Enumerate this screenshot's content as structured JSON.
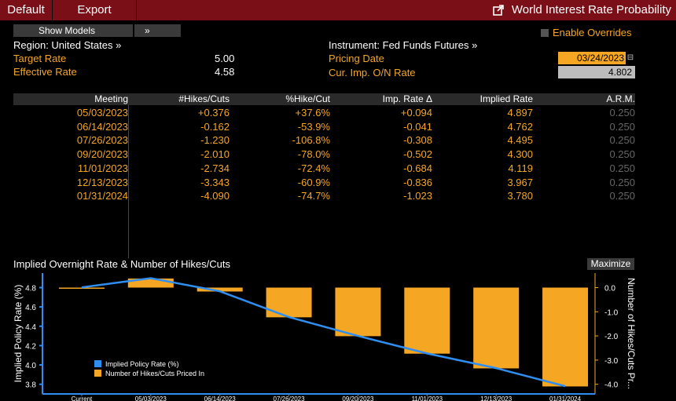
{
  "topbar": {
    "default_label": "Default",
    "export_label": "Export",
    "title": "World Interest Rate Probability"
  },
  "controls": {
    "show_models_label": "Show Models",
    "show_models_arrows": "»",
    "enable_overrides_label": "Enable Overrides"
  },
  "info": {
    "region_label": "Region: United States »",
    "target_rate_label": "Target Rate",
    "target_rate_value": "5.00",
    "effective_rate_label": "Effective Rate",
    "effective_rate_value": "4.58",
    "instrument_label": "Instrument: Fed Funds Futures »",
    "pricing_date_label": "Pricing Date",
    "pricing_date_value": "03/24/2023",
    "cur_rate_label": "Cur. Imp. O/N Rate",
    "cur_rate_value": "4.802"
  },
  "table": {
    "headers": [
      "Meeting",
      "#Hikes/Cuts",
      "%Hike/Cut",
      "Imp. Rate Δ",
      "Implied Rate",
      "A.R.M."
    ],
    "rows": [
      [
        "05/03/2023",
        "+0.376",
        "+37.6%",
        "+0.094",
        "4.897",
        "0.250"
      ],
      [
        "06/14/2023",
        "-0.162",
        "-53.9%",
        "-0.041",
        "4.762",
        "0.250"
      ],
      [
        "07/26/2023",
        "-1.230",
        "-106.8%",
        "-0.308",
        "4.495",
        "0.250"
      ],
      [
        "09/20/2023",
        "-2.010",
        "-78.0%",
        "-0.502",
        "4.300",
        "0.250"
      ],
      [
        "11/01/2023",
        "-2.734",
        "-72.4%",
        "-0.684",
        "4.119",
        "0.250"
      ],
      [
        "12/13/2023",
        "-3.343",
        "-60.9%",
        "-0.836",
        "3.967",
        "0.250"
      ],
      [
        "01/31/2024",
        "-4.090",
        "-74.7%",
        "-1.023",
        "3.780",
        "0.250"
      ]
    ]
  },
  "chart_header": {
    "title": "Implied Overnight Rate & Number of Hikes/Cuts",
    "maximize_label": "Maximize"
  },
  "chart_data": {
    "type": "bar",
    "categories": [
      "Current",
      "05/03/2023",
      "06/14/2023",
      "07/26/2023",
      "09/20/2023",
      "11/01/2023",
      "12/13/2023",
      "01/31/2024"
    ],
    "series": [
      {
        "name": "Implied Policy Rate (%)",
        "type": "line",
        "axis": "left",
        "values": [
          4.802,
          4.897,
          4.762,
          4.495,
          4.3,
          4.119,
          3.967,
          3.78
        ]
      },
      {
        "name": "Number of Hikes/Cuts Priced In",
        "type": "bar",
        "axis": "right",
        "values": [
          0.0,
          0.376,
          -0.162,
          -1.23,
          -2.01,
          -2.734,
          -3.343,
          -4.09
        ]
      }
    ],
    "ylabel": "Implied Policy Rate (%)",
    "y2label": "Number of Hikes/Cuts Pr...",
    "ylim": [
      3.7,
      4.95
    ],
    "y2lim": [
      -4.4,
      0.6
    ],
    "yticks": [
      "4.8",
      "4.6",
      "4.4",
      "4.2",
      "4.0",
      "3.8"
    ],
    "y2ticks": [
      "0.0",
      "-1.0",
      "-2.0",
      "-3.0",
      "-4.0"
    ],
    "legend_position": "bottom-left",
    "colors": {
      "line": "#2f8ef0",
      "bars": "#f5a623",
      "axis": "#2f8ef0"
    }
  }
}
